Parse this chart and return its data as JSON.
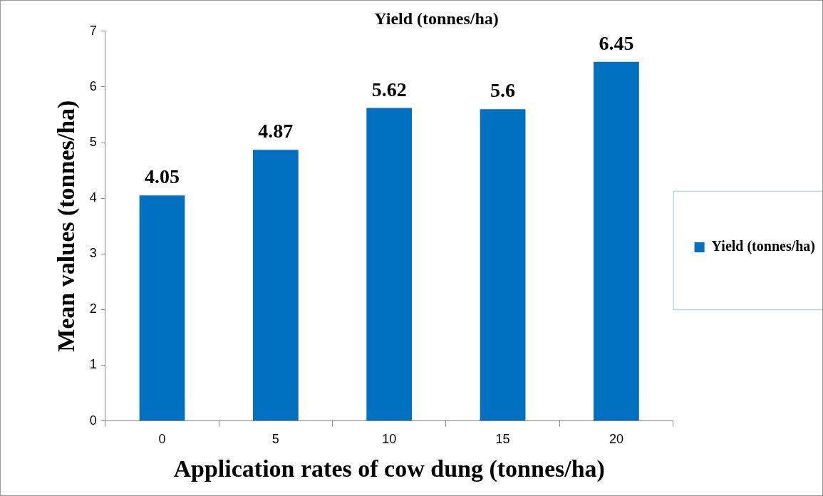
{
  "chart_data": {
    "type": "bar",
    "title": "Yield (tonnes/ha)",
    "xlabel": "Application rates of cow dung (tonnes/ha)",
    "ylabel": "Mean values (tonnes/ha)",
    "categories": [
      "0",
      "5",
      "10",
      "15",
      "20"
    ],
    "series": [
      {
        "name": "Yield (tonnes/ha)",
        "color": "#0070c0",
        "values": [
          4.05,
          4.87,
          5.62,
          5.6,
          6.45
        ]
      }
    ],
    "ylim": [
      0,
      7
    ],
    "yticks": [
      0,
      1,
      2,
      3,
      4,
      5,
      6,
      7
    ],
    "grid": false,
    "legend": "right",
    "data_labels": true
  }
}
